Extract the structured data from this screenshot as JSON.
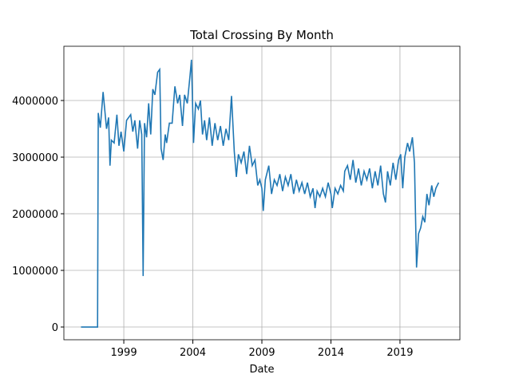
{
  "chart_data": {
    "type": "line",
    "title": "Total Crossing By Month",
    "xlabel": "Date",
    "x": [
      1995.9,
      1997.1,
      1997.15,
      1997.3,
      1997.5,
      1997.75,
      1997.9,
      1998.0,
      1998.1,
      1998.3,
      1998.5,
      1998.65,
      1998.8,
      1999.0,
      1999.2,
      1999.5,
      1999.65,
      1999.8,
      2000.0,
      2000.15,
      2000.3,
      2000.4,
      2000.5,
      2000.65,
      2000.8,
      2000.95,
      2001.1,
      2001.25,
      2001.45,
      2001.6,
      2001.7,
      2001.85,
      2002.0,
      2002.1,
      2002.3,
      2002.5,
      2002.7,
      2002.9,
      2003.05,
      2003.25,
      2003.4,
      2003.6,
      2003.8,
      2003.9,
      2004.05,
      2004.2,
      2004.4,
      2004.55,
      2004.7,
      2004.85,
      2005.0,
      2005.2,
      2005.4,
      2005.6,
      2005.8,
      2006.0,
      2006.2,
      2006.4,
      2006.6,
      2006.8,
      2007.0,
      2007.15,
      2007.3,
      2007.5,
      2007.7,
      2007.9,
      2008.1,
      2008.3,
      2008.5,
      2008.7,
      2008.85,
      2009.0,
      2009.1,
      2009.25,
      2009.5,
      2009.7,
      2009.9,
      2010.1,
      2010.3,
      2010.5,
      2010.7,
      2010.9,
      2011.1,
      2011.3,
      2011.5,
      2011.7,
      2011.9,
      2012.1,
      2012.3,
      2012.5,
      2012.7,
      2012.85,
      2013.0,
      2013.2,
      2013.4,
      2013.6,
      2013.8,
      2014.0,
      2014.1,
      2014.3,
      2014.5,
      2014.7,
      2014.9,
      2015.0,
      2015.2,
      2015.4,
      2015.6,
      2015.8,
      2016.0,
      2016.2,
      2016.4,
      2016.6,
      2016.8,
      2017.0,
      2017.2,
      2017.4,
      2017.6,
      2017.8,
      2017.95,
      2018.1,
      2018.3,
      2018.5,
      2018.7,
      2018.9,
      2019.05,
      2019.2,
      2019.35,
      2019.55,
      2019.7,
      2019.9,
      2020.05,
      2020.2,
      2020.35,
      2020.5,
      2020.65,
      2020.8,
      2020.95,
      2021.1,
      2021.3,
      2021.45,
      2021.6,
      2021.8
    ],
    "series": [
      {
        "name": "Total Crossing",
        "color": "#1f77b4",
        "values": [
          0,
          0,
          3780000,
          3520000,
          4150000,
          3500000,
          3700000,
          2850000,
          3300000,
          3250000,
          3750000,
          3200000,
          3450000,
          3100000,
          3650000,
          3750000,
          3450000,
          3650000,
          3150000,
          3650000,
          3400000,
          900000,
          3600000,
          3350000,
          3950000,
          3400000,
          4200000,
          4100000,
          4500000,
          4550000,
          3150000,
          2950000,
          3400000,
          3250000,
          3600000,
          3600000,
          4250000,
          3950000,
          4100000,
          3550000,
          4100000,
          3950000,
          4450000,
          4720000,
          3250000,
          3950000,
          3850000,
          4000000,
          3400000,
          3650000,
          3300000,
          3700000,
          3200000,
          3600000,
          3300000,
          3550000,
          3200000,
          3500000,
          3300000,
          4080000,
          3100000,
          2650000,
          3050000,
          2900000,
          3100000,
          2700000,
          3200000,
          2850000,
          2950000,
          2500000,
          2600000,
          2450000,
          2050000,
          2600000,
          2850000,
          2350000,
          2600000,
          2500000,
          2700000,
          2400000,
          2650000,
          2500000,
          2700000,
          2350000,
          2600000,
          2400000,
          2550000,
          2350000,
          2550000,
          2300000,
          2450000,
          2100000,
          2400000,
          2300000,
          2450000,
          2300000,
          2550000,
          2350000,
          2100000,
          2450000,
          2350000,
          2500000,
          2400000,
          2750000,
          2850000,
          2600000,
          2950000,
          2550000,
          2800000,
          2500000,
          2750000,
          2600000,
          2800000,
          2450000,
          2750000,
          2500000,
          2850000,
          2350000,
          2200000,
          2750000,
          2500000,
          2900000,
          2600000,
          2950000,
          3050000,
          2450000,
          3000000,
          3250000,
          3100000,
          3350000,
          2900000,
          1050000,
          1650000,
          1750000,
          1950000,
          1850000,
          2350000,
          2150000,
          2500000,
          2300000,
          2450000,
          2550000
        ]
      }
    ],
    "xlim": [
      1994.66,
      2023.34
    ],
    "xticks": [
      1999,
      2004,
      2009,
      2014,
      2019
    ],
    "ylim": [
      -225000,
      4958000
    ],
    "yticks": [
      0,
      1000000,
      2000000,
      3000000,
      4000000
    ],
    "grid": true
  }
}
